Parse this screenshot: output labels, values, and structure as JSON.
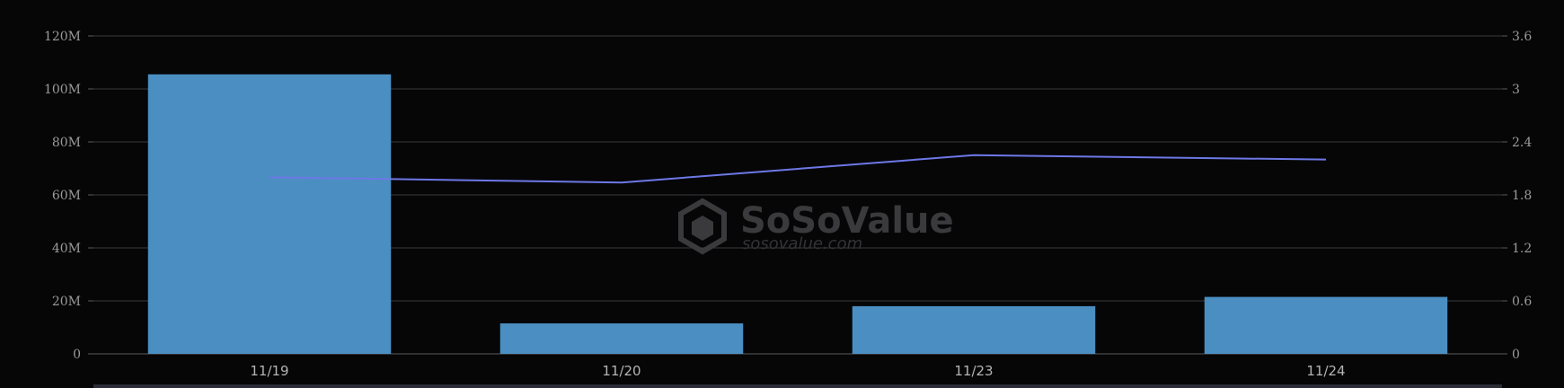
{
  "watermark": {
    "brand": "SoSoValue",
    "url": "sosovalue.com"
  },
  "colors": {
    "background": "#060607",
    "bar": "#4b8fc2",
    "line": "#6d78e6",
    "grid": "#3a3a3e",
    "tick_text": "#9a9a9a"
  },
  "chart_data": {
    "type": "bar",
    "categories": [
      "11/19",
      "11/20",
      "11/23",
      "11/24"
    ],
    "series": [
      {
        "type": "bar",
        "axis": "left",
        "values": [
          105.5,
          11.5,
          18,
          21.5
        ]
      },
      {
        "type": "line",
        "axis": "right",
        "values": [
          2.0,
          1.94,
          2.25,
          2.2
        ]
      }
    ],
    "left_axis": {
      "ticks": [
        "0",
        "20M",
        "40M",
        "60M",
        "80M",
        "100M",
        "120M"
      ],
      "range": [
        0,
        120
      ],
      "unit": "M"
    },
    "right_axis": {
      "ticks": [
        "0",
        "0.6",
        "1.2",
        "1.8",
        "2.4",
        "3",
        "3.6"
      ],
      "range": [
        0,
        3.6
      ]
    },
    "grid": true,
    "legend": "none",
    "title": "",
    "xlabel": "",
    "ylabel": ""
  }
}
